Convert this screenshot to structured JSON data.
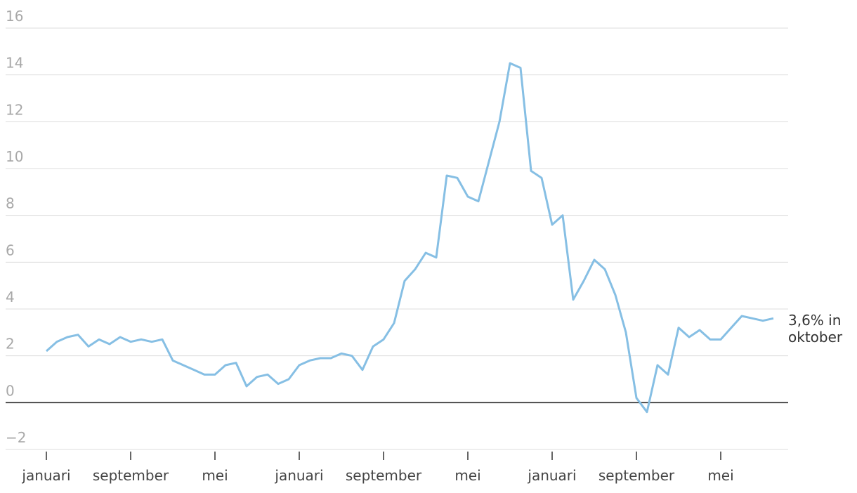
{
  "chart_data": {
    "type": "line",
    "categories": [
      "januari",
      null,
      null,
      null,
      null,
      null,
      null,
      null,
      "september",
      null,
      null,
      null,
      null,
      null,
      null,
      null,
      "mei",
      null,
      null,
      null,
      null,
      null,
      null,
      null,
      "januari",
      null,
      null,
      null,
      null,
      null,
      null,
      null,
      "september",
      null,
      null,
      null,
      null,
      null,
      null,
      null,
      "mei",
      null,
      null,
      null,
      null,
      null,
      null,
      null,
      "januari",
      null,
      null,
      null,
      null,
      null,
      null,
      null,
      "september",
      null,
      null,
      null,
      null,
      null,
      null,
      null,
      "mei",
      null,
      null,
      null,
      null,
      null
    ],
    "series": [
      {
        "color": "#86bfe4",
        "values": [
          2.2,
          2.6,
          2.8,
          2.9,
          2.4,
          2.7,
          2.5,
          2.8,
          2.6,
          2.7,
          2.6,
          2.7,
          1.8,
          1.6,
          1.4,
          1.2,
          1.2,
          1.6,
          1.7,
          0.7,
          1.1,
          1.2,
          0.8,
          1.0,
          1.6,
          1.8,
          1.9,
          1.9,
          2.1,
          2.0,
          1.4,
          2.4,
          2.7,
          3.4,
          5.2,
          5.7,
          6.4,
          6.2,
          9.7,
          9.6,
          8.8,
          8.6,
          10.3,
          12.0,
          14.5,
          14.3,
          9.9,
          9.6,
          7.6,
          8.0,
          4.4,
          5.2,
          6.1,
          5.7,
          4.6,
          3.0,
          0.2,
          -0.4,
          1.6,
          1.2,
          3.2,
          2.8,
          3.1,
          2.7,
          2.7,
          3.2,
          3.7,
          3.6,
          3.5,
          3.6
        ]
      }
    ],
    "ylim": [
      -2,
      16
    ],
    "yticks": [
      {
        "value": -2,
        "label": "−2"
      },
      0,
      2,
      4,
      6,
      8,
      10,
      12,
      14,
      16
    ],
    "grid": true,
    "annotation": [
      "3,6% in",
      "oktober"
    ]
  }
}
